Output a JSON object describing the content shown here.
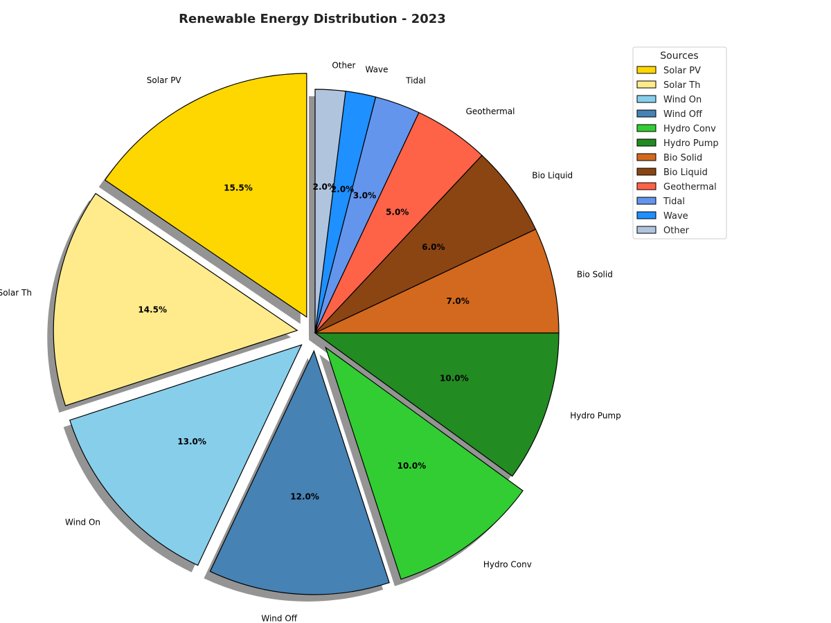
{
  "chart_data": {
    "type": "pie",
    "title": "Renewable Energy Distribution - 2023",
    "categories": [
      "Solar PV",
      "Solar Th",
      "Wind On",
      "Wind Off",
      "Hydro Conv",
      "Hydro Pump",
      "Bio Solid",
      "Bio Liquid",
      "Geothermal",
      "Tidal",
      "Wave",
      "Other"
    ],
    "values": [
      15.5,
      14.5,
      13.0,
      12.0,
      10.0,
      10.0,
      7.0,
      6.0,
      5.0,
      3.0,
      2.0,
      2.0
    ],
    "value_labels": [
      "15.5%",
      "14.5%",
      "13.0%",
      "12.0%",
      "10.0%",
      "10.0%",
      "7.0%",
      "6.0%",
      "5.0%",
      "3.0%",
      "2.0%",
      "2.0%"
    ],
    "colors": [
      "#FFD700",
      "#FFEB8C",
      "#87CEEB",
      "#4682B4",
      "#32CD32",
      "#228B22",
      "#D2691E",
      "#8B4513",
      "#FF6347",
      "#6495ED",
      "#1E90FF",
      "#B0C4DE"
    ],
    "exploded": [
      true,
      true,
      true,
      true,
      true,
      false,
      false,
      false,
      false,
      false,
      false,
      false
    ],
    "shadow": true,
    "start_angle_deg": 90,
    "direction": "counterclockwise",
    "legend": {
      "title": "Sources",
      "placement": "upper-right",
      "entries": [
        "Solar PV",
        "Solar Th",
        "Wind On",
        "Wind Off",
        "Hydro Conv",
        "Hydro Pump",
        "Bio Solid",
        "Bio Liquid",
        "Geothermal",
        "Tidal",
        "Wave",
        "Other"
      ]
    }
  }
}
